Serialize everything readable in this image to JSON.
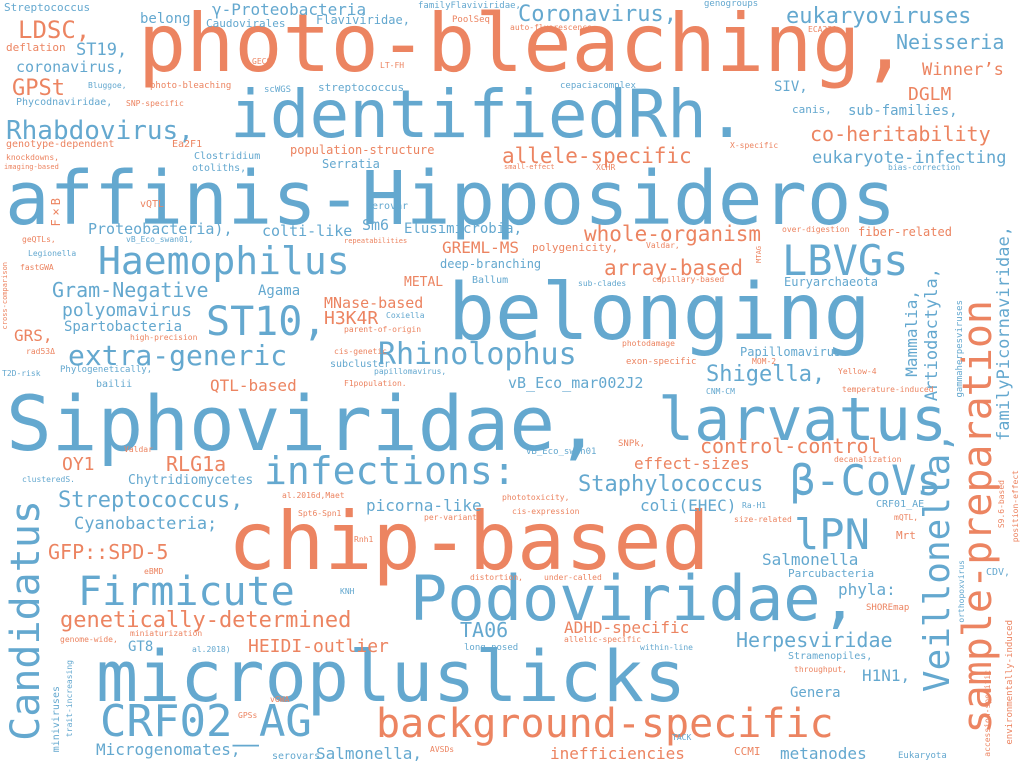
{
  "palette": {
    "blue": "#64a8cf",
    "orange": "#ec8461"
  },
  "words": [
    {
      "text": "photo-bleaching,",
      "color": "orange"
    },
    {
      "text": "identifiedRh.",
      "color": "blue"
    },
    {
      "text": "affinis-Hipposideros",
      "color": "blue"
    },
    {
      "text": "belonging",
      "color": "blue"
    },
    {
      "text": "Siphoviridae,",
      "color": "blue"
    },
    {
      "text": "larvatus",
      "color": "blue"
    },
    {
      "text": "chip-based",
      "color": "orange"
    },
    {
      "text": "micropluslicks",
      "color": "blue"
    },
    {
      "text": "Podoviridae,",
      "color": "blue"
    },
    {
      "text": "CRF02_AG",
      "color": "blue"
    },
    {
      "text": "background-specific",
      "color": "orange"
    },
    {
      "text": "sample-preparation",
      "color": "orange"
    },
    {
      "text": "Candidatus",
      "color": "blue"
    },
    {
      "text": "Veillonella,",
      "color": "blue"
    },
    {
      "text": "Haemophilus",
      "color": "blue"
    },
    {
      "text": "LBVGs",
      "color": "blue"
    },
    {
      "text": "ST10,",
      "color": "blue"
    },
    {
      "text": "infections:",
      "color": "blue"
    },
    {
      "text": "β-CoVs",
      "color": "blue"
    },
    {
      "text": "lPN",
      "color": "blue"
    },
    {
      "text": "Firmicute",
      "color": "blue"
    },
    {
      "text": "Rhabdovirus,",
      "color": "blue"
    },
    {
      "text": "Rhinolophus",
      "color": "blue"
    },
    {
      "text": "extra-generic",
      "color": "blue"
    },
    {
      "text": "Coronavirus,",
      "color": "blue"
    },
    {
      "text": "eukaryoviruses",
      "color": "blue"
    },
    {
      "text": "Neisseria",
      "color": "blue"
    },
    {
      "text": "LDSC,",
      "color": "orange"
    },
    {
      "text": "GPSt",
      "color": "orange"
    },
    {
      "text": "ST19,",
      "color": "blue"
    },
    {
      "text": "coronavirus,",
      "color": "blue"
    },
    {
      "text": "DGLM",
      "color": "orange"
    },
    {
      "text": "Winner’s",
      "color": "orange"
    },
    {
      "text": "co-heritability",
      "color": "orange"
    },
    {
      "text": "eukaryote-infecting",
      "color": "blue"
    },
    {
      "text": "allele-specific",
      "color": "orange"
    },
    {
      "text": "whole-organism",
      "color": "orange"
    },
    {
      "text": "array-based",
      "color": "orange"
    },
    {
      "text": "Gram-Negative",
      "color": "blue"
    },
    {
      "text": "polyomavirus",
      "color": "blue"
    },
    {
      "text": "H3K4R",
      "color": "orange"
    },
    {
      "text": "Shigella,",
      "color": "blue"
    },
    {
      "text": "control-control",
      "color": "orange"
    },
    {
      "text": "Staphylococcus",
      "color": "blue"
    },
    {
      "text": "Streptococcus,",
      "color": "blue"
    },
    {
      "text": "Cyanobacteria;",
      "color": "blue"
    },
    {
      "text": "GFP::SPD-5",
      "color": "orange"
    },
    {
      "text": "genetically-determined",
      "color": "orange"
    },
    {
      "text": "Herpesviridae",
      "color": "blue"
    },
    {
      "text": "Salmonella",
      "color": "blue"
    },
    {
      "text": "HEIDI-outlier",
      "color": "orange"
    },
    {
      "text": "TA06",
      "color": "blue"
    },
    {
      "text": "ADHD-specific",
      "color": "orange"
    },
    {
      "text": "Microgenomates,",
      "color": "blue"
    },
    {
      "text": "Salmonella,",
      "color": "blue"
    },
    {
      "text": "inefficiencies",
      "color": "orange"
    },
    {
      "text": "metanodes",
      "color": "blue"
    },
    {
      "text": "QTL-based",
      "color": "orange"
    },
    {
      "text": "RLG1a",
      "color": "orange"
    },
    {
      "text": "OY1",
      "color": "orange"
    },
    {
      "text": "effect-sizes",
      "color": "orange"
    },
    {
      "text": "coli(EHEC)",
      "color": "blue"
    },
    {
      "text": "picorna-like",
      "color": "blue"
    },
    {
      "text": "Mammalia,",
      "color": "blue"
    },
    {
      "text": "Artiodactyla,",
      "color": "blue"
    },
    {
      "text": "familyPicornaviridae,",
      "color": "blue"
    },
    {
      "text": "GREML-MS",
      "color": "orange"
    },
    {
      "text": "MNase-based",
      "color": "orange"
    },
    {
      "text": "Spartobacteria",
      "color": "blue"
    },
    {
      "text": "GRS,",
      "color": "orange"
    },
    {
      "text": "Proteobacteria),",
      "color": "blue"
    },
    {
      "text": "colti-like",
      "color": "blue"
    },
    {
      "text": "Sm6",
      "color": "blue"
    },
    {
      "text": "Elusimicrobia,",
      "color": "blue"
    },
    {
      "text": "Agama",
      "color": "blue"
    },
    {
      "text": "METAL",
      "color": "orange"
    },
    {
      "text": "vB_Eco_mar002J2",
      "color": "blue"
    },
    {
      "text": "phyla:",
      "color": "blue"
    },
    {
      "text": "H1N1,",
      "color": "blue"
    },
    {
      "text": "Genera",
      "color": "blue"
    },
    {
      "text": "GT8",
      "color": "blue"
    },
    {
      "text": "Chytridiomycetes",
      "color": "blue"
    },
    {
      "text": "Papillomavirus",
      "color": "blue"
    },
    {
      "text": "γ-Proteobacteria",
      "color": "blue"
    },
    {
      "text": "belong",
      "color": "blue"
    },
    {
      "text": "SIV,",
      "color": "blue"
    },
    {
      "text": "sub-families,",
      "color": "blue"
    },
    {
      "text": "Serratia",
      "color": "blue"
    },
    {
      "text": "population-structure",
      "color": "orange"
    },
    {
      "text": "fiber-related",
      "color": "orange"
    },
    {
      "text": "deep-branching",
      "color": "blue"
    },
    {
      "text": "Euryarchaeota",
      "color": "blue"
    },
    {
      "text": "Streptococcus",
      "color": "blue"
    },
    {
      "text": "Caudovirales",
      "color": "blue"
    },
    {
      "text": "Flaviviridae,",
      "color": "blue"
    },
    {
      "text": "familyFlaviviridae,",
      "color": "blue"
    },
    {
      "text": "PoolSeq",
      "color": "orange"
    },
    {
      "text": "genogroups",
      "color": "blue"
    },
    {
      "text": "auto-fluorescence,",
      "color": "orange"
    },
    {
      "text": "ECA230",
      "color": "orange"
    },
    {
      "text": "deflation",
      "color": "orange"
    },
    {
      "text": "GECS",
      "color": "orange"
    },
    {
      "text": "LT-FH",
      "color": "orange"
    },
    {
      "text": "Bluggoe,",
      "color": "blue"
    },
    {
      "text": "photo-bleaching",
      "color": "orange"
    },
    {
      "text": "scWGS",
      "color": "blue"
    },
    {
      "text": "streptococcus",
      "color": "blue"
    },
    {
      "text": "cepaciacomplex",
      "color": "blue"
    },
    {
      "text": "Phycodnaviridae,",
      "color": "blue"
    },
    {
      "text": "SNP-specific",
      "color": "orange"
    },
    {
      "text": "canis,",
      "color": "blue"
    },
    {
      "text": "genotype-dependent",
      "color": "orange"
    },
    {
      "text": "Ea2F1",
      "color": "orange"
    },
    {
      "text": "Clostridium",
      "color": "blue"
    },
    {
      "text": "X-specific",
      "color": "orange"
    },
    {
      "text": "knockdowns,",
      "color": "orange"
    },
    {
      "text": "otoliths,",
      "color": "blue"
    },
    {
      "text": "imaging-based",
      "color": "orange"
    },
    {
      "text": "small-effect",
      "color": "orange"
    },
    {
      "text": "XCHR",
      "color": "orange"
    },
    {
      "text": "bias-correction",
      "color": "blue"
    },
    {
      "text": "F×B",
      "color": "orange"
    },
    {
      "text": "vQTL",
      "color": "orange"
    },
    {
      "text": "serovar",
      "color": "blue"
    },
    {
      "text": "over-digestion",
      "color": "orange"
    },
    {
      "text": "geQTLs,",
      "color": "orange"
    },
    {
      "text": "vB_Eco_swan01,",
      "color": "blue"
    },
    {
      "text": "repeatabilities",
      "color": "orange"
    },
    {
      "text": "Legionella",
      "color": "blue"
    },
    {
      "text": "polygenicity,",
      "color": "orange"
    },
    {
      "text": "Valdar,",
      "color": "orange"
    },
    {
      "text": "fastGWA",
      "color": "orange"
    },
    {
      "text": "Ballum",
      "color": "blue"
    },
    {
      "text": "sub-clades",
      "color": "blue"
    },
    {
      "text": "capillary-based",
      "color": "orange"
    },
    {
      "text": "MTAG",
      "color": "orange"
    },
    {
      "text": "cross-comparison",
      "color": "orange"
    },
    {
      "text": "Coxiella",
      "color": "blue"
    },
    {
      "text": "parent-of-origin",
      "color": "orange"
    },
    {
      "text": "high-precision",
      "color": "orange"
    },
    {
      "text": "rad53Δ",
      "color": "orange"
    },
    {
      "text": "cis-genetic",
      "color": "orange"
    },
    {
      "text": "photodamage",
      "color": "orange"
    },
    {
      "text": "subcluster",
      "color": "blue"
    },
    {
      "text": "exon-specific",
      "color": "orange"
    },
    {
      "text": "MOM-2",
      "color": "orange"
    },
    {
      "text": "T2D-risk",
      "color": "blue"
    },
    {
      "text": "Phylogenetically,",
      "color": "blue"
    },
    {
      "text": "papillomavirus,",
      "color": "blue"
    },
    {
      "text": "Yellow-4",
      "color": "orange"
    },
    {
      "text": "bailii",
      "color": "blue"
    },
    {
      "text": "F1population.",
      "color": "orange"
    },
    {
      "text": "CNM-CM",
      "color": "blue"
    },
    {
      "text": "temperature-induced",
      "color": "orange"
    },
    {
      "text": "gammaherpesviruses",
      "color": "blue"
    },
    {
      "text": "SNPk,",
      "color": "orange"
    },
    {
      "text": "vB_Eco_swan01",
      "color": "blue"
    },
    {
      "text": "Valdar",
      "color": "orange"
    },
    {
      "text": "decanalization",
      "color": "orange"
    },
    {
      "text": "clusteredS.",
      "color": "blue"
    },
    {
      "text": "al.2016d,Maet",
      "color": "orange"
    },
    {
      "text": "phototoxicity,",
      "color": "orange"
    },
    {
      "text": "Ra-H1",
      "color": "blue"
    },
    {
      "text": "CRF01_AE",
      "color": "blue"
    },
    {
      "text": "Spt6-Spn1",
      "color": "orange"
    },
    {
      "text": "cis-expression",
      "color": "orange"
    },
    {
      "text": "per-variant",
      "color": "orange"
    },
    {
      "text": "size-related",
      "color": "orange"
    },
    {
      "text": "mQTL,",
      "color": "orange"
    },
    {
      "text": "Rnh1",
      "color": "orange"
    },
    {
      "text": "Mrt",
      "color": "orange"
    },
    {
      "text": "eBMD",
      "color": "orange"
    },
    {
      "text": "CDV,",
      "color": "blue"
    },
    {
      "text": "distortion,",
      "color": "orange"
    },
    {
      "text": "under-called",
      "color": "orange"
    },
    {
      "text": "Parcubacteria",
      "color": "blue"
    },
    {
      "text": "KNH",
      "color": "blue"
    },
    {
      "text": "SHOREmap",
      "color": "orange"
    },
    {
      "text": "miniaturization",
      "color": "orange"
    },
    {
      "text": "genome-wide,",
      "color": "orange"
    },
    {
      "text": "al.2018)",
      "color": "blue"
    },
    {
      "text": "allelic-specific",
      "color": "orange"
    },
    {
      "text": "long-nosed",
      "color": "blue"
    },
    {
      "text": "within-line",
      "color": "blue"
    },
    {
      "text": "Stramenopiles,",
      "color": "blue"
    },
    {
      "text": "throughput,",
      "color": "orange"
    },
    {
      "text": "vGWA",
      "color": "orange"
    },
    {
      "text": "GPSs",
      "color": "orange"
    },
    {
      "text": "TACK",
      "color": "blue"
    },
    {
      "text": "AVSDs",
      "color": "orange"
    },
    {
      "text": "CCMI",
      "color": "orange"
    },
    {
      "text": "Eukaryota",
      "color": "blue"
    },
    {
      "text": "serovars",
      "color": "blue"
    },
    {
      "text": "miniviruses",
      "color": "blue"
    },
    {
      "text": "trait-increasing",
      "color": "blue"
    },
    {
      "text": "orthopoxvirus",
      "color": "blue"
    },
    {
      "text": "accession-specific",
      "color": "orange"
    },
    {
      "text": "environmentally-induced",
      "color": "orange"
    },
    {
      "text": "S9.6-based",
      "color": "orange"
    },
    {
      "text": "position-effect",
      "color": "orange"
    }
  ]
}
